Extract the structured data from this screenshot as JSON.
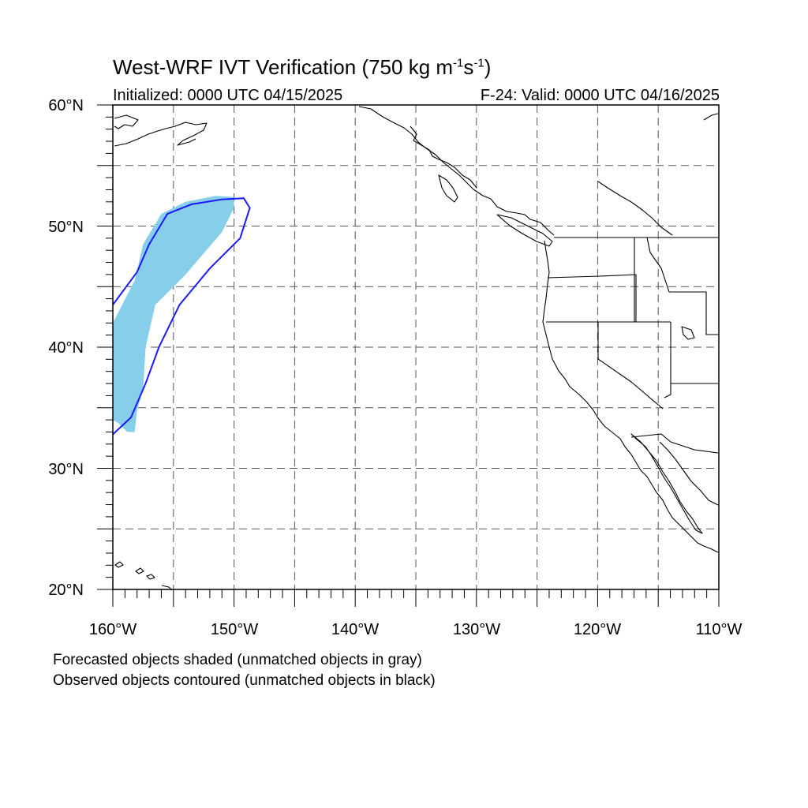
{
  "title": {
    "main": "West-WRF IVT Verification (750 kg m",
    "sup1": "-1",
    "mid": "s",
    "sup2": "-1",
    "end": ")"
  },
  "initialized": "Initialized: 0000 UTC 04/15/2025",
  "valid": "F-24: Valid: 0000 UTC 04/16/2025",
  "legend_notes": [
    "Forecasted objects shaded (unmatched objects in gray)",
    "Observed objects contoured (unmatched objects in black)"
  ],
  "lat_labels": [
    "60°N",
    "50°N",
    "40°N",
    "30°N",
    "20°N"
  ],
  "lon_labels": [
    "160°W",
    "150°W",
    "140°W",
    "130°W",
    "120°W",
    "110°W"
  ],
  "extent": {
    "lon_min": -160,
    "lon_max": -110,
    "lat_min": 20,
    "lat_max": 60
  },
  "colors": {
    "forecast_fill": "#87ceeb",
    "observed_contour": "#1a1aff",
    "coastline": "#000000",
    "grid": "#555555"
  },
  "objects": {
    "forecast_shaded": [
      [
        -160,
        34.0
      ],
      [
        -160,
        42.0
      ],
      [
        -158.2,
        45.5
      ],
      [
        -157.5,
        48.5
      ],
      [
        -156.0,
        51.0
      ],
      [
        -154.0,
        52.0
      ],
      [
        -151.5,
        52.5
      ],
      [
        -150.0,
        52.4
      ],
      [
        -150.0,
        51.5
      ],
      [
        -151.0,
        49.5
      ],
      [
        -154.0,
        46.0
      ],
      [
        -156.5,
        43.5
      ],
      [
        -157.3,
        40.0
      ],
      [
        -157.5,
        36.5
      ],
      [
        -158.0,
        34.8
      ],
      [
        -158.2,
        33.0
      ],
      [
        -158.8,
        33.0
      ],
      [
        -159.5,
        33.7
      ],
      [
        -160,
        34.0
      ]
    ],
    "observed_contour": [
      [
        -160,
        43.5
      ],
      [
        -158.0,
        46.2
      ],
      [
        -157.0,
        48.5
      ],
      [
        -155.5,
        51.0
      ],
      [
        -153.5,
        51.8
      ],
      [
        -151.0,
        52.2
      ],
      [
        -149.2,
        52.3
      ],
      [
        -148.7,
        51.5
      ],
      [
        -149.5,
        49.0
      ],
      [
        -152.0,
        46.5
      ],
      [
        -154.5,
        43.5
      ],
      [
        -156.2,
        40.0
      ],
      [
        -157.3,
        37.0
      ],
      [
        -158.5,
        34.2
      ],
      [
        -160,
        32.8
      ]
    ]
  }
}
